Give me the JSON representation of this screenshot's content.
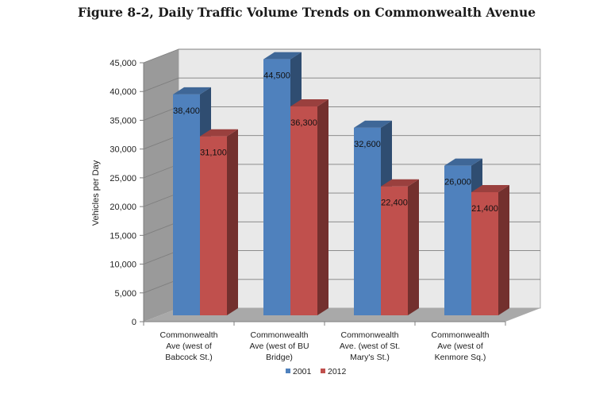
{
  "figure_title": "Figure 8-2, Daily Traffic Volume Trends on Commonwealth Avenue",
  "chart_data": {
    "type": "bar",
    "title": "Figure 8-2, Daily Traffic Volume Trends on Commonwealth Avenue",
    "xlabel": "",
    "ylabel": "Vehicles per Day",
    "ylim": [
      0,
      45000
    ],
    "ytick_step": 5000,
    "ytick_labels": [
      "0",
      "5,000",
      "10,000",
      "15,000",
      "20,000",
      "25,000",
      "30,000",
      "35,000",
      "40,000",
      "45,000"
    ],
    "grid": true,
    "legend_position": "bottom",
    "categories": [
      [
        "Commonwealth",
        "Ave (west of",
        "Babcock St.)"
      ],
      [
        "Commonwealth",
        "Ave (west of BU",
        "Bridge)"
      ],
      [
        "Commonwealth",
        "Ave. (west of St.",
        "Mary's St.)"
      ],
      [
        "Commonwealth",
        "Ave (west of",
        "Kenmore Sq.)"
      ]
    ],
    "series": [
      {
        "name": "2001",
        "color": "#4f81bd",
        "values": [
          38400,
          44500,
          32600,
          26000
        ],
        "labels": [
          "38,400",
          "44,500",
          "32,600",
          "26,000"
        ]
      },
      {
        "name": "2012",
        "color": "#c0504d",
        "values": [
          31100,
          36300,
          22400,
          21400
        ],
        "labels": [
          "31,100",
          "36,300",
          "22,400",
          "21,400"
        ]
      }
    ]
  }
}
